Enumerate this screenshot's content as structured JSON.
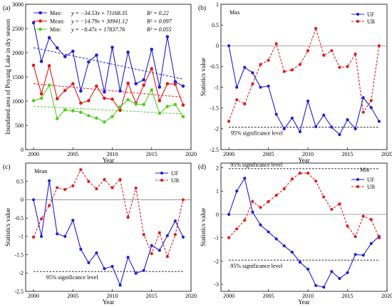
{
  "chart_data": [
    {
      "id": "a",
      "panel_label": "(a)",
      "type": "line",
      "xlabel": "Year",
      "ylabel": "Inundated area of Poyang Lake in dry season",
      "xlim": [
        1999,
        2020
      ],
      "ylim": [
        0,
        3000
      ],
      "xticks": [
        2000,
        2005,
        2010,
        2015,
        2020
      ],
      "yticks": [
        0,
        500,
        1000,
        1500,
        2000,
        2500,
        3000
      ],
      "x": [
        2000,
        2001,
        2002,
        2003,
        2004,
        2005,
        2006,
        2007,
        2008,
        2009,
        2010,
        2011,
        2012,
        2013,
        2014,
        2015,
        2016,
        2017,
        2018,
        2019
      ],
      "series": [
        {
          "name": "Max",
          "equation": "y = −34.53x + 71168.35",
          "r2": "R² = 0.22",
          "color": "#1f1fd6",
          "marker": "circle",
          "values": [
            2620,
            1820,
            2310,
            2100,
            1920,
            2030,
            1210,
            1810,
            1950,
            1190,
            2110,
            1210,
            2010,
            1360,
            1440,
            2070,
            1290,
            2330,
            1400,
            1310
          ],
          "trend": [
            2105,
            1455
          ]
        },
        {
          "name": "Mean",
          "equation": "y = −14.79x + 30941.12",
          "r2": "R² = 0.097",
          "color": "#e01b1b",
          "marker": "circle",
          "values": [
            1740,
            1150,
            1730,
            1050,
            1220,
            1360,
            960,
            1010,
            1310,
            1060,
            1040,
            810,
            1370,
            960,
            1330,
            1670,
            1010,
            1360,
            1350,
            920
          ],
          "trend": [
            1360,
            1080
          ]
        },
        {
          "name": "Min",
          "equation": "y = −8.47x + 17837.76",
          "r2": "R² = 0.055",
          "color": "#55cc22",
          "marker": "circle",
          "values": [
            1010,
            1060,
            1330,
            640,
            820,
            800,
            770,
            700,
            650,
            570,
            680,
            880,
            1030,
            940,
            930,
            1230,
            750,
            890,
            930,
            680
          ],
          "trend": [
            895,
            735
          ]
        }
      ]
    },
    {
      "id": "b",
      "panel_label": "(b)",
      "corner_label": "Max",
      "type": "line",
      "xlabel": "Year",
      "ylabel": "Statistics value",
      "xlim": [
        1999,
        2020
      ],
      "ylim": [
        -2.5,
        1
      ],
      "xticks": [
        2000,
        2005,
        2010,
        2015,
        2020
      ],
      "yticks": [
        -2.5,
        -2,
        -1.5,
        -1,
        -0.5,
        0,
        0.5,
        1
      ],
      "ytick_labels": [
        "-2.5",
        "-2",
        "-1.5",
        "-1",
        "-0.5",
        "0",
        "0.5",
        "1"
      ],
      "sig_levels": [
        -1.96
      ],
      "sig_text": "95% significance level",
      "legend": [
        "UF",
        "UB"
      ],
      "x": [
        2000,
        2001,
        2002,
        2003,
        2004,
        2005,
        2006,
        2007,
        2008,
        2009,
        2010,
        2011,
        2012,
        2013,
        2014,
        2015,
        2016,
        2017,
        2018,
        2019
      ],
      "series": [
        {
          "name": "UF",
          "color": "#1f1fd6",
          "style": "solid",
          "marker": "circle",
          "values": [
            0,
            -1.0,
            -0.52,
            -0.65,
            -1.0,
            -0.97,
            -1.65,
            -2.0,
            -1.74,
            -2.07,
            -1.33,
            -1.95,
            -1.67,
            -1.96,
            -2.14,
            -1.78,
            -2.0,
            -1.25,
            -1.49,
            -1.82
          ]
        },
        {
          "name": "UB",
          "color": "#e01b1b",
          "style": "dashed",
          "marker": "circle",
          "values": [
            -1.82,
            -1.3,
            -1.4,
            -0.92,
            -0.45,
            -0.35,
            0.05,
            -0.62,
            -0.58,
            -0.45,
            -0.12,
            0.42,
            -0.23,
            -0.12,
            -0.52,
            -0.5,
            -0.2,
            -1.6,
            -1.32,
            0
          ]
        }
      ]
    },
    {
      "id": "c",
      "panel_label": "(c)",
      "corner_label": "Mean",
      "type": "line",
      "xlabel": "Year",
      "ylabel": "Statistics value",
      "xlim": [
        1999,
        2020
      ],
      "ylim": [
        -2.5,
        1
      ],
      "xticks": [
        2000,
        2005,
        2010,
        2015,
        2020
      ],
      "yticks": [
        -2.5,
        -2,
        -1.5,
        -1,
        -0.5,
        0,
        0.5
      ],
      "ytick_labels": [
        "-2.5",
        "-2",
        "-1.5",
        "-1",
        "-0.5",
        "0",
        "0.5"
      ],
      "sig_levels": [
        -1.96
      ],
      "sig_text": "95% significance level",
      "legend": [
        "UF",
        "UB"
      ],
      "x": [
        2000,
        2001,
        2002,
        2003,
        2004,
        2005,
        2006,
        2007,
        2008,
        2009,
        2010,
        2011,
        2012,
        2013,
        2014,
        2015,
        2016,
        2017,
        2018,
        2019
      ],
      "series": [
        {
          "name": "UF",
          "color": "#1f1fd6",
          "style": "solid",
          "marker": "circle",
          "values": [
            0,
            -1.0,
            0.52,
            -0.93,
            -1.0,
            -0.56,
            -1.35,
            -1.72,
            -1.45,
            -1.88,
            -1.82,
            -2.33,
            -1.57,
            -2.01,
            -1.93,
            -1.25,
            -1.38,
            -0.98,
            -0.58,
            -1.02
          ]
        },
        {
          "name": "UB",
          "color": "#e01b1b",
          "style": "dashed",
          "marker": "circle",
          "values": [
            -1.02,
            -0.52,
            -0.16,
            0.33,
            0.28,
            0.38,
            0.82,
            0.5,
            0.3,
            0.55,
            0.33,
            0.55,
            -0.48,
            0.32,
            -0.95,
            -1.47,
            -0.9,
            -1.55,
            -0.95,
            0
          ]
        }
      ]
    },
    {
      "id": "d",
      "panel_label": "(d)",
      "corner_label": "Min",
      "type": "line",
      "xlabel": "Year",
      "ylabel": "Statistics value",
      "xlim": [
        1999,
        2020
      ],
      "ylim": [
        -3.3,
        2.2
      ],
      "xticks": [
        2000,
        2005,
        2010,
        2015,
        2020
      ],
      "yticks": [
        -3,
        -2,
        -1,
        0,
        1,
        2
      ],
      "ytick_labels": [
        "-3",
        "-2",
        "-1",
        "0",
        "1",
        "2"
      ],
      "sig_levels": [
        1.96,
        -1.96
      ],
      "sig_text_top": "95% significance level",
      "sig_text": "95% significance level",
      "legend": [
        "UF",
        "UB"
      ],
      "x": [
        2000,
        2001,
        2002,
        2003,
        2004,
        2005,
        2006,
        2007,
        2008,
        2009,
        2010,
        2011,
        2012,
        2013,
        2014,
        2015,
        2016,
        2017,
        2018,
        2019
      ],
      "series": [
        {
          "name": "UF",
          "color": "#1f1fd6",
          "style": "solid",
          "marker": "circle",
          "values": [
            0,
            1.0,
            1.55,
            0.1,
            -0.45,
            -0.75,
            -1.05,
            -1.35,
            -1.62,
            -2.05,
            -2.35,
            -3.05,
            -3.12,
            -2.45,
            -2.75,
            -2.5,
            -1.72,
            -1.75,
            -1.25,
            -0.95
          ]
        },
        {
          "name": "UB",
          "color": "#e01b1b",
          "style": "dashed",
          "marker": "circle",
          "values": [
            -1.0,
            -0.62,
            -0.25,
            0.55,
            0.3,
            0.55,
            0.82,
            1.1,
            1.52,
            1.77,
            1.77,
            1.43,
            0.75,
            0.22,
            0.45,
            -0.5,
            -0.95,
            -0.08,
            -0.22,
            -1.0
          ]
        }
      ]
    }
  ]
}
